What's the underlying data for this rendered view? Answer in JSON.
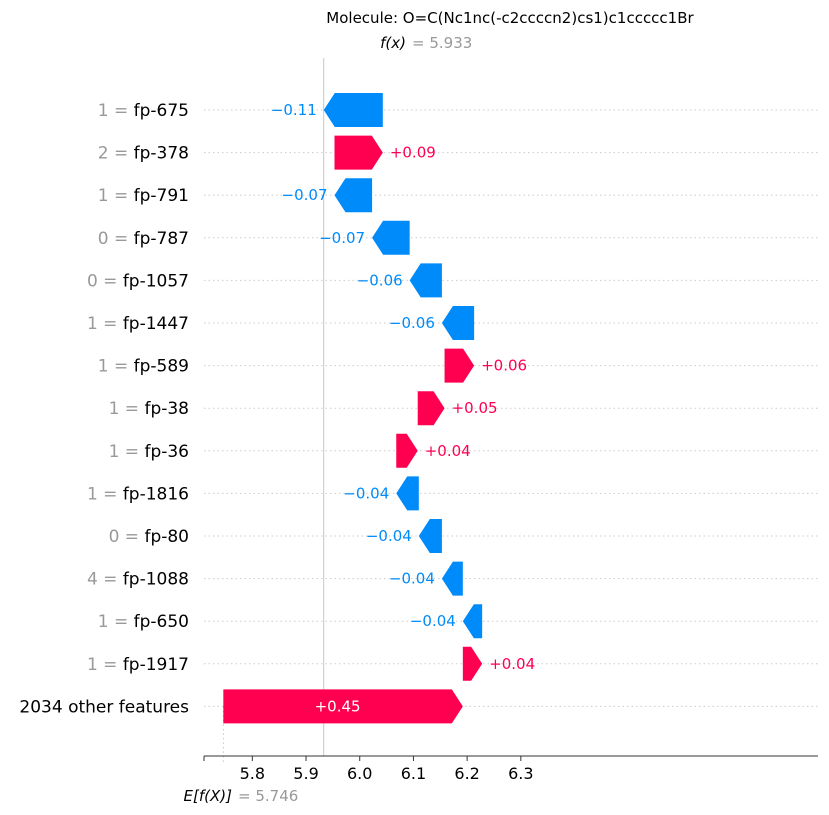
{
  "chart_data": {
    "type": "waterfall",
    "title": "Molecule: O=C(Nc1nc(-c2ccccn2)cs1)c1ccccc1Br",
    "fx_label": "f(x)",
    "fx_value": "= 5.933",
    "ex_label": "E[f(X)]",
    "ex_value": "= 5.746",
    "base_value": 5.746,
    "final_value": 5.933,
    "xlim": [
      5.71,
      6.32
    ],
    "xticks": [
      "5.8",
      "5.9",
      "6.0",
      "6.1",
      "6.2",
      "6.3"
    ],
    "xtick_values": [
      5.8,
      5.9,
      6.0,
      6.1,
      6.2,
      6.3
    ],
    "colors": {
      "positive": "#ff0051",
      "negative": "#008bfb"
    },
    "features": [
      {
        "value": "1",
        "name": "fp-675",
        "shap": -0.11,
        "label": "−0.11",
        "start": 6.043,
        "end": 5.933
      },
      {
        "value": "2",
        "name": "fp-378",
        "shap": 0.09,
        "label": "+0.09",
        "start": 5.953,
        "end": 6.043
      },
      {
        "value": "1",
        "name": "fp-791",
        "shap": -0.07,
        "label": "−0.07",
        "start": 6.023,
        "end": 5.953
      },
      {
        "value": "0",
        "name": "fp-787",
        "shap": -0.07,
        "label": "−0.07",
        "start": 6.093,
        "end": 6.023
      },
      {
        "value": "0",
        "name": "fp-1057",
        "shap": -0.06,
        "label": "−0.06",
        "start": 6.153,
        "end": 6.093
      },
      {
        "value": "1",
        "name": "fp-1447",
        "shap": -0.06,
        "label": "−0.06",
        "start": 6.213,
        "end": 6.153
      },
      {
        "value": "1",
        "name": "fp-589",
        "shap": 0.06,
        "label": "+0.06",
        "start": 6.158,
        "end": 6.213
      },
      {
        "value": "1",
        "name": "fp-38",
        "shap": 0.05,
        "label": "+0.05",
        "start": 6.108,
        "end": 6.158
      },
      {
        "value": "1",
        "name": "fp-36",
        "shap": 0.04,
        "label": "+0.04",
        "start": 6.068,
        "end": 6.108
      },
      {
        "value": "1",
        "name": "fp-1816",
        "shap": -0.04,
        "label": "−0.04",
        "start": 6.11,
        "end": 6.068
      },
      {
        "value": "0",
        "name": "fp-80",
        "shap": -0.04,
        "label": "−0.04",
        "start": 6.153,
        "end": 6.11
      },
      {
        "value": "4",
        "name": "fp-1088",
        "shap": -0.04,
        "label": "−0.04",
        "start": 6.192,
        "end": 6.153
      },
      {
        "value": "1",
        "name": "fp-650",
        "shap": -0.04,
        "label": "−0.04",
        "start": 6.228,
        "end": 6.192
      },
      {
        "value": "1",
        "name": "fp-1917",
        "shap": 0.04,
        "label": "+0.04",
        "start": 6.192,
        "end": 6.228
      },
      {
        "value": "",
        "name": "2034 other features",
        "shap": 0.45,
        "label": "+0.45",
        "start": 5.746,
        "end": 6.192
      }
    ]
  }
}
